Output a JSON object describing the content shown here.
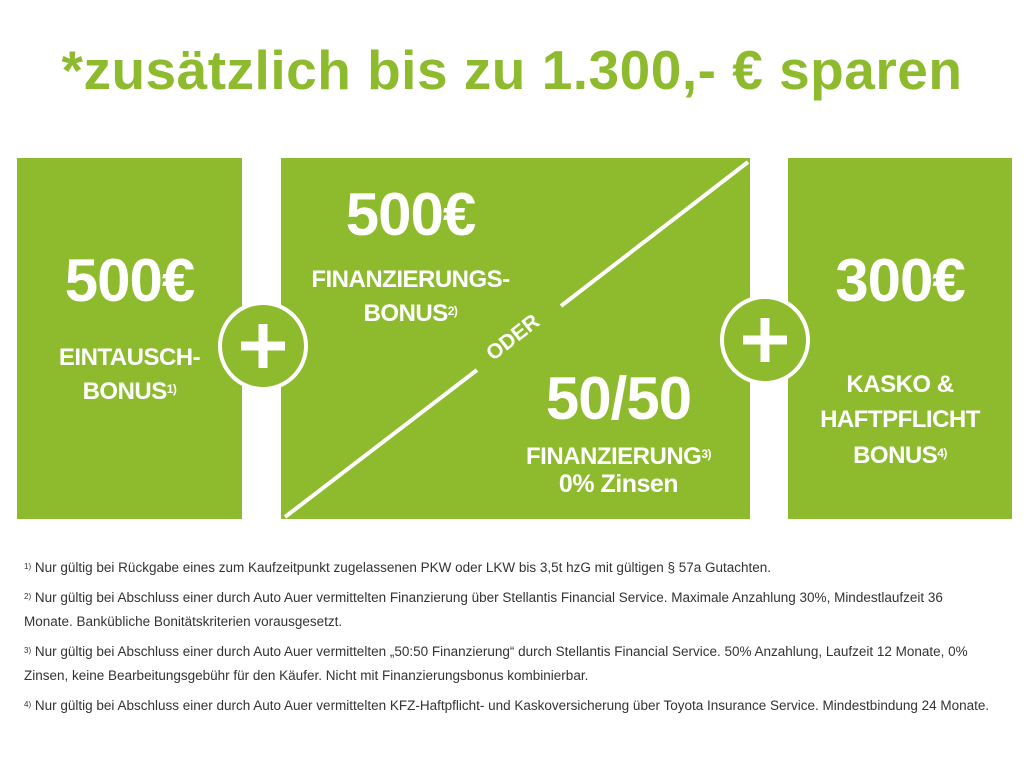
{
  "headline": "*zusätzlich bis zu 1.300,- € sparen",
  "colors": {
    "accent": "#8dbb2d",
    "text": "#333333"
  },
  "box1": {
    "amount": "500€",
    "line1": "EINTAUSCH-",
    "line2": "BONUS",
    "sup": "1)"
  },
  "box2": {
    "top": {
      "amount": "500€",
      "line1": "FINANZIERUNGS-",
      "line2": "BONUS",
      "sup": "2)"
    },
    "separator": "ODER",
    "bottom": {
      "amount": "50/50",
      "line1": "FINANZIERUNG",
      "sup": "3)",
      "line2": "0% Zinsen"
    }
  },
  "box3": {
    "amount": "300€",
    "line1": "KASKO &",
    "line2": "HAFTPFLICHT",
    "line3": "BONUS",
    "sup": "4)"
  },
  "plus_icons": [
    "plus-icon",
    "plus-icon"
  ],
  "footnotes": [
    {
      "mark": "1)",
      "text": "Nur gültig bei Rückgabe eines zum Kaufzeitpunkt zugelassenen PKW oder LKW bis 3,5t hzG mit gültigen § 57a Gutachten."
    },
    {
      "mark": "2)",
      "text": "Nur gültig bei Abschluss einer durch Auto Auer vermittelten Finanzierung über Stellantis Financial Service. Maximale Anzahlung 30%, Mindestlaufzeit 36 Monate. Bankübliche Bonitätskriterien vorausgesetzt."
    },
    {
      "mark": "3)",
      "text": "Nur gültig bei Abschluss einer durch Auto Auer vermittelten „50:50 Finanzierung“ durch Stellantis Financial Service. 50% Anzahlung, Laufzeit 12 Monate, 0% Zinsen, keine Bearbeitungsgebühr für den Käufer. Nicht mit Finanzierungsbonus kombinierbar."
    },
    {
      "mark": "4)",
      "text": "Nur gültig bei Abschluss einer durch Auto Auer vermittelten KFZ-Haftpflicht- und Kaskoversicherung über Toyota Insurance Service. Mindestbindung 24 Monate."
    }
  ]
}
